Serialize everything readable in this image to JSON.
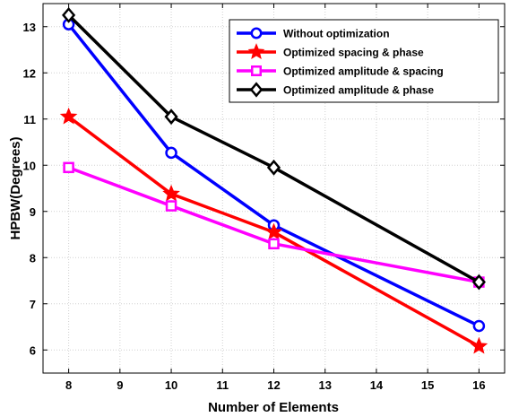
{
  "chart_data": {
    "type": "line",
    "xlabel": "Number of Elements",
    "ylabel": "HPBW(Degrees)",
    "xlim": [
      7.5,
      16.5
    ],
    "ylim": [
      5.5,
      13.5
    ],
    "xticks": [
      "8",
      "9",
      "10",
      "11",
      "12",
      "13",
      "14",
      "15",
      "16"
    ],
    "yticks": [
      "6",
      "7",
      "8",
      "9",
      "10",
      "11",
      "12",
      "13"
    ],
    "grid": true,
    "legend_position": "top-right",
    "x": [
      8,
      10,
      12,
      16
    ],
    "series": [
      {
        "name": "Without optimization",
        "color": "#0000ff",
        "marker": "circle",
        "values": [
          13.05,
          10.27,
          8.7,
          6.52
        ]
      },
      {
        "name": "Optimized spacing & phase",
        "color": "#ff0000",
        "marker": "star",
        "values": [
          11.05,
          9.38,
          8.55,
          6.08
        ]
      },
      {
        "name": "Optimized amplitude & spacing",
        "color": "#ff00ff",
        "marker": "square",
        "values": [
          9.95,
          9.12,
          8.3,
          7.47
        ]
      },
      {
        "name": "Optimized amplitude & phase",
        "color": "#000000",
        "marker": "diamond",
        "values": [
          13.25,
          11.05,
          9.95,
          7.47
        ]
      }
    ]
  }
}
